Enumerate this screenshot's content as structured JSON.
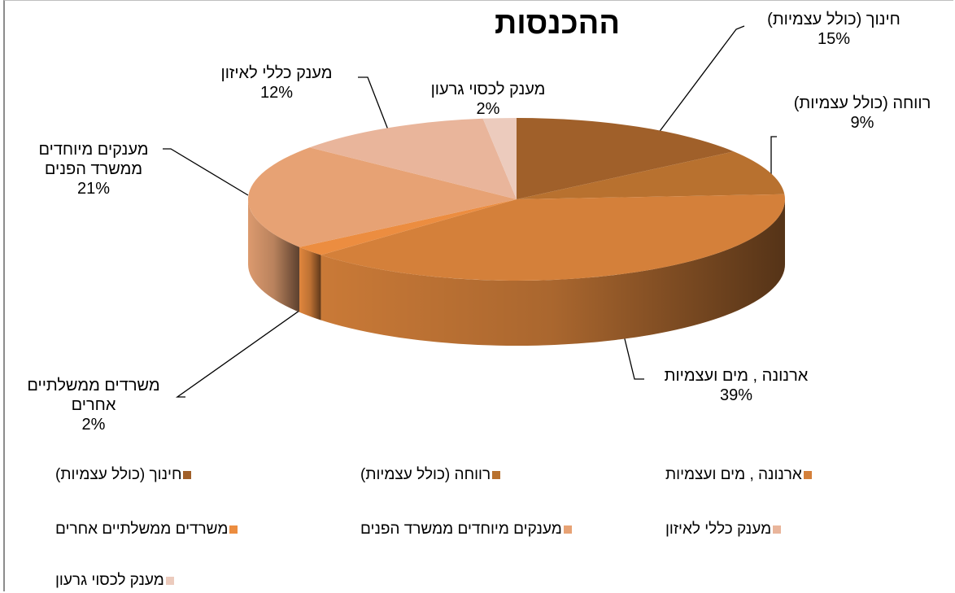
{
  "chart_data": {
    "type": "pie3d",
    "title": "ההכנסות",
    "categories": [
      "חינוך (כולל עצמיות)",
      "רווחה (כולל עצמיות)",
      "ארנונה , מים ועצמיות",
      "משרדים ממשלתיים אחרים",
      "מענקים מיוחדים ממשרד הפנים",
      "מענק כללי לאיזון",
      "מענק לכסוי גרעון"
    ],
    "values": [
      15,
      9,
      39,
      2,
      21,
      12,
      2
    ],
    "value_labels": [
      "15%",
      "9%",
      "39%",
      "2%",
      "21%",
      "12%",
      "2%"
    ],
    "colors": [
      "#a0602a",
      "#b8712f",
      "#d4803a",
      "#ec8d40",
      "#e7a274",
      "#e9b59b",
      "#eccbbd"
    ],
    "legend": "bottom"
  }
}
